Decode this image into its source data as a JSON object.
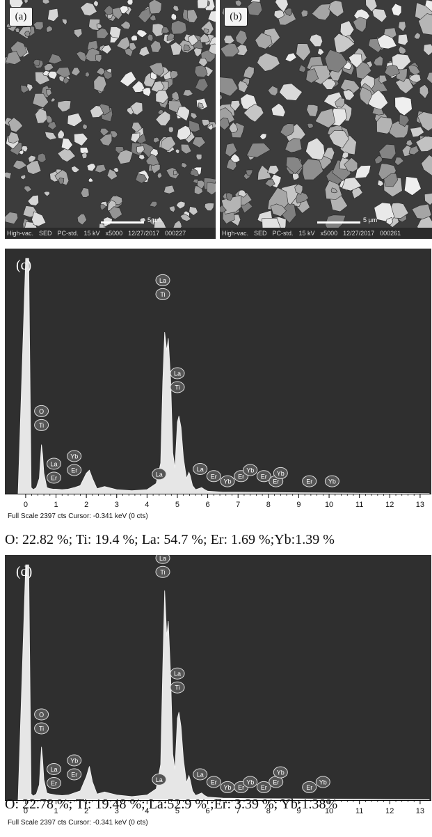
{
  "sem_panels": [
    {
      "tag": "(a)",
      "footer": [
        "High-vac.",
        "SED",
        "PC-std.",
        "15 kV",
        "x5000",
        "12/27/2017",
        "000227"
      ],
      "scale": "5 µm"
    },
    {
      "tag": "(b)",
      "footer": [
        "High-vac.",
        "SED",
        "PC-std.",
        "15 kV",
        "x5000",
        "12/27/2017",
        "000261"
      ],
      "scale": "5 µm"
    }
  ],
  "chart_data": [
    {
      "type": "line",
      "panel": "(c)",
      "xlabel": "",
      "ylabel": "",
      "x_ticks": [
        0,
        1,
        2,
        3,
        4,
        5,
        6,
        7,
        8,
        9,
        10,
        11,
        12,
        13
      ],
      "xlim": [
        -0.25,
        13.3
      ],
      "ylim": [
        0,
        2397
      ],
      "footer": "Full Scale 2397 cts  Cursor: -0.341 keV (0 cts)",
      "spectrum": {
        "x": [
          -0.25,
          0.0,
          0.1,
          0.18,
          0.25,
          0.35,
          0.45,
          0.52,
          0.56,
          0.6,
          0.7,
          0.8,
          0.9,
          1.0,
          1.2,
          1.4,
          1.6,
          1.8,
          2.0,
          2.1,
          2.2,
          2.35,
          2.6,
          3.0,
          3.5,
          4.0,
          4.3,
          4.45,
          4.52,
          4.58,
          4.65,
          4.7,
          4.78,
          4.85,
          4.92,
          5.0,
          5.05,
          5.12,
          5.2,
          5.3,
          5.38,
          5.42,
          5.5,
          5.6,
          5.8,
          5.9,
          6.0,
          6.5,
          7.0,
          8.0,
          9.0,
          10.0,
          11.0,
          12.0,
          13.3
        ],
        "y": [
          0,
          2300,
          2300,
          60,
          40,
          60,
          150,
          480,
          380,
          200,
          60,
          50,
          45,
          45,
          40,
          45,
          60,
          80,
          200,
          230,
          150,
          50,
          70,
          40,
          30,
          40,
          100,
          300,
          1100,
          1580,
          1400,
          1520,
          1100,
          400,
          250,
          700,
          760,
          650,
          350,
          150,
          210,
          180,
          80,
          40,
          60,
          40,
          25,
          15,
          15,
          12,
          10,
          8,
          6,
          5,
          3
        ]
      },
      "peak_labels": [
        {
          "x": 0.52,
          "y": 590,
          "labels": [
            "Ti",
            "O"
          ]
        },
        {
          "x": 0.93,
          "y": 75,
          "labels": [
            "Er",
            "La"
          ]
        },
        {
          "x": 1.6,
          "y": 150,
          "labels": [
            "Er",
            "Yb"
          ]
        },
        {
          "x": 4.4,
          "y": 110,
          "labels": [
            "La"
          ]
        },
        {
          "x": 4.52,
          "y": 1870,
          "labels": [
            "Ti",
            "La"
          ]
        },
        {
          "x": 5.0,
          "y": 960,
          "labels": [
            "Ti",
            "La"
          ]
        },
        {
          "x": 5.75,
          "y": 160,
          "labels": [
            "La"
          ]
        },
        {
          "x": 6.2,
          "y": 90,
          "labels": [
            "Er"
          ]
        },
        {
          "x": 6.65,
          "y": 40,
          "labels": [
            "Yb"
          ]
        },
        {
          "x": 7.1,
          "y": 90,
          "labels": [
            "Er"
          ]
        },
        {
          "x": 7.4,
          "y": 150,
          "labels": [
            "Yb"
          ]
        },
        {
          "x": 7.85,
          "y": 90,
          "labels": [
            "Er"
          ]
        },
        {
          "x": 8.25,
          "y": 40,
          "labels": [
            "Er"
          ]
        },
        {
          "x": 8.4,
          "y": 120,
          "labels": [
            "Yb"
          ]
        },
        {
          "x": 9.35,
          "y": 40,
          "labels": [
            "Er"
          ]
        },
        {
          "x": 10.1,
          "y": 40,
          "labels": [
            "Yb"
          ]
        }
      ],
      "composition": "O: 22.82 %; Ti: 19.4 %; La: 54.7 %; Er: 1.69 %;Yb:1.39 %"
    },
    {
      "type": "line",
      "panel": "(d)",
      "xlabel": "",
      "ylabel": "",
      "x_ticks": [
        0,
        1,
        2,
        3,
        4,
        5,
        6,
        7,
        8,
        9,
        10,
        11,
        12,
        13
      ],
      "xlim": [
        -0.25,
        13.3
      ],
      "ylim": [
        0,
        2397
      ],
      "footer": "Full Scale 2397 cts  Cursor: -0.341 keV (0 cts)",
      "spectrum": {
        "x": [
          -0.25,
          0.0,
          0.1,
          0.18,
          0.25,
          0.35,
          0.45,
          0.52,
          0.56,
          0.6,
          0.7,
          0.8,
          0.9,
          1.0,
          1.2,
          1.4,
          1.6,
          1.8,
          2.0,
          2.1,
          2.2,
          2.35,
          2.6,
          3.0,
          3.5,
          4.0,
          4.3,
          4.45,
          4.52,
          4.58,
          4.65,
          4.7,
          4.78,
          4.85,
          4.92,
          5.0,
          5.05,
          5.12,
          5.2,
          5.3,
          5.38,
          5.42,
          5.5,
          5.6,
          5.8,
          5.9,
          6.0,
          6.5,
          7.0,
          8.0,
          9.0,
          10.0,
          11.0,
          12.0,
          13.3
        ],
        "y": [
          0,
          2300,
          2300,
          60,
          40,
          60,
          150,
          520,
          400,
          200,
          70,
          60,
          55,
          50,
          45,
          50,
          70,
          90,
          230,
          330,
          180,
          60,
          80,
          50,
          35,
          50,
          110,
          350,
          1300,
          2050,
          1600,
          1750,
          1200,
          450,
          300,
          800,
          860,
          720,
          400,
          170,
          240,
          200,
          90,
          45,
          70,
          45,
          30,
          20,
          18,
          14,
          12,
          10,
          8,
          6,
          4
        ]
      },
      "peak_labels": [
        {
          "x": 0.52,
          "y": 620,
          "labels": [
            "Ti",
            "O"
          ]
        },
        {
          "x": 0.93,
          "y": 85,
          "labels": [
            "Er",
            "La"
          ]
        },
        {
          "x": 1.6,
          "y": 170,
          "labels": [
            "Er",
            "Yb"
          ]
        },
        {
          "x": 4.4,
          "y": 120,
          "labels": [
            "La"
          ]
        },
        {
          "x": 4.52,
          "y": 2150,
          "labels": [
            "Ti",
            "La"
          ]
        },
        {
          "x": 5.0,
          "y": 1020,
          "labels": [
            "Ti",
            "La"
          ]
        },
        {
          "x": 5.75,
          "y": 170,
          "labels": [
            "La"
          ]
        },
        {
          "x": 6.2,
          "y": 95,
          "labels": [
            "Er"
          ]
        },
        {
          "x": 6.65,
          "y": 45,
          "labels": [
            "Yb"
          ]
        },
        {
          "x": 7.1,
          "y": 45,
          "labels": [
            "Er"
          ]
        },
        {
          "x": 7.4,
          "y": 95,
          "labels": [
            "Yb"
          ]
        },
        {
          "x": 7.85,
          "y": 45,
          "labels": [
            "Er"
          ]
        },
        {
          "x": 8.25,
          "y": 95,
          "labels": [
            "Er"
          ]
        },
        {
          "x": 8.4,
          "y": 190,
          "labels": [
            "Yb"
          ]
        },
        {
          "x": 9.35,
          "y": 45,
          "labels": [
            "Er"
          ]
        },
        {
          "x": 9.8,
          "y": 95,
          "labels": [
            "Yb"
          ]
        }
      ],
      "composition": "O: 22.78 %; Ti: 19.48 %; La:52.9 % ;Er: 3.39 %; Yb:1.38%"
    }
  ]
}
